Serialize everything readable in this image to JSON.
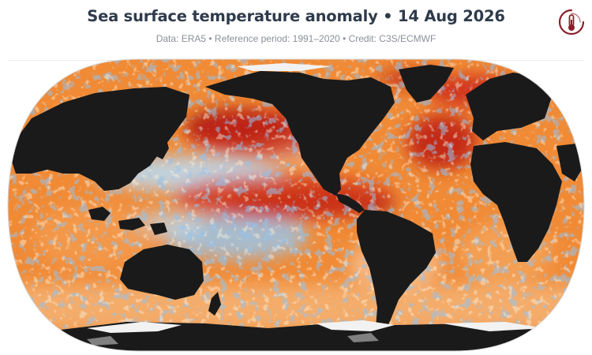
{
  "header": {
    "title": "Sea surface temperature anomaly • 14 Aug 2026",
    "subtitle": "Data: ERA5 • Reference period: 1991–2020 • Credit: C3S/ECMWF",
    "logo_icon": "thermometer-globe-icon",
    "logo_color": "#8a1f2a"
  },
  "map": {
    "projection": "robinson",
    "land_color": "#1a1a1a",
    "sea_ice_color": "#f2f2f2",
    "colors": {
      "strong_warm": "#8b0d0d",
      "warm": "#e0481a",
      "mild_warm": "#f59a3a",
      "neutral": "#fbe6c8",
      "cool": "#bcd9ef",
      "strong_cool": "#4f8fc8"
    }
  }
}
